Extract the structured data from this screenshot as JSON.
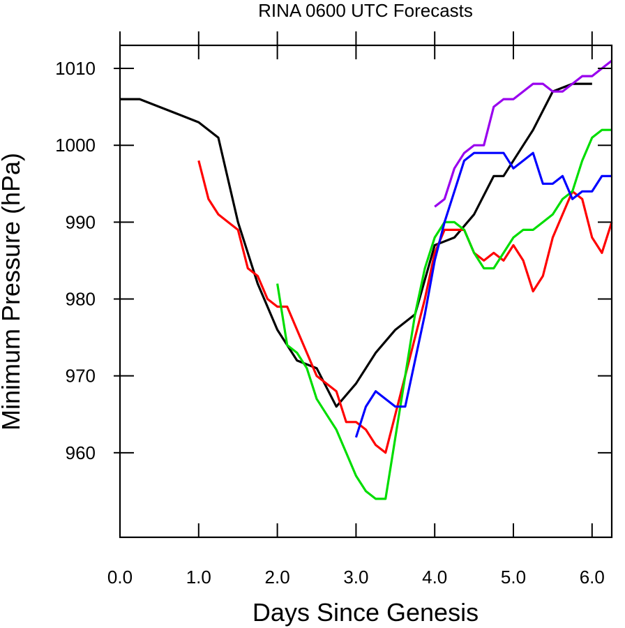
{
  "chart_data": {
    "type": "line",
    "title": "RINA 0600 UTC Forecasts",
    "xlabel": "Days Since Genesis",
    "ylabel": "Minimum Pressure (hPa)",
    "xlim": [
      0,
      6.25
    ],
    "ylim": [
      949,
      1013
    ],
    "x_ticks": [
      0,
      1,
      2,
      3,
      4,
      5,
      6
    ],
    "x_tick_labels": [
      "0.0",
      "1.0",
      "2.0",
      "3.0",
      "4.0",
      "5.0",
      "6.0"
    ],
    "y_ticks": [
      960,
      970,
      980,
      990,
      1000,
      1010
    ],
    "y_tick_labels": [
      "960",
      "970",
      "980",
      "990",
      "1000",
      "1010"
    ],
    "grid": false,
    "series": [
      {
        "color": "#000000",
        "x": [
          0,
          0.25,
          0.5,
          0.75,
          1.0,
          1.25,
          1.5,
          1.75,
          2.0,
          2.25,
          2.5,
          2.75,
          3.0,
          3.25,
          3.5,
          3.75,
          4.0,
          4.25,
          4.5,
          4.75,
          4.875,
          5.0,
          5.25,
          5.5,
          5.75,
          6.0
        ],
        "y": [
          1006,
          1006,
          1005,
          1004,
          1003,
          1001,
          990,
          982,
          976,
          972,
          971,
          966,
          969,
          973,
          976,
          978,
          987,
          988,
          991,
          996,
          996,
          998,
          1002,
          1007,
          1008,
          1008
        ]
      },
      {
        "color": "#ff0000",
        "x": [
          1.0,
          1.125,
          1.25,
          1.375,
          1.5,
          1.625,
          1.75,
          1.875,
          2.0,
          2.125,
          2.25,
          2.375,
          2.5,
          2.625,
          2.75,
          2.875,
          3.0,
          3.125,
          3.25,
          3.375,
          3.5,
          3.625,
          3.75,
          3.875,
          4.0,
          4.125,
          4.25,
          4.375,
          4.5,
          4.625,
          4.75,
          4.875,
          5.0,
          5.125,
          5.25,
          5.375,
          5.5,
          5.625,
          5.75,
          5.875,
          6.0,
          6.125,
          6.25
        ],
        "y": [
          998,
          993,
          991,
          990,
          989,
          984,
          983,
          980,
          979,
          979,
          976,
          973,
          970,
          969,
          968,
          964,
          964,
          963,
          961,
          960,
          965,
          970,
          975,
          980,
          986,
          989,
          989,
          989,
          986,
          985,
          986,
          985,
          987,
          985,
          981,
          983,
          988,
          991,
          994,
          993,
          988,
          986,
          990
        ]
      },
      {
        "color": "#00dd00",
        "x": [
          2.0,
          2.125,
          2.25,
          2.375,
          2.5,
          2.625,
          2.75,
          2.875,
          3.0,
          3.125,
          3.25,
          3.375,
          3.5,
          3.625,
          3.75,
          3.875,
          4.0,
          4.125,
          4.25,
          4.375,
          4.5,
          4.625,
          4.75,
          4.875,
          5.0,
          5.125,
          5.25,
          5.375,
          5.5,
          5.625,
          5.75,
          5.875,
          6.0,
          6.125,
          6.25
        ],
        "y": [
          982,
          974,
          973,
          971,
          967,
          965,
          963,
          960,
          957,
          955,
          954,
          954,
          962,
          970,
          978,
          984,
          988,
          990,
          990,
          989,
          986,
          984,
          984,
          986,
          988,
          989,
          989,
          990,
          991,
          993,
          994,
          998,
          1001,
          1002,
          1002
        ]
      },
      {
        "color": "#0000ff",
        "x": [
          3.0,
          3.125,
          3.25,
          3.375,
          3.5,
          3.625,
          3.75,
          3.875,
          4.0,
          4.125,
          4.25,
          4.375,
          4.5,
          4.625,
          4.75,
          4.875,
          5.0,
          5.125,
          5.25,
          5.375,
          5.5,
          5.625,
          5.75,
          5.875,
          6.0,
          6.125,
          6.25
        ],
        "y": [
          962,
          966,
          968,
          967,
          966,
          966,
          972,
          978,
          985,
          990,
          994,
          998,
          999,
          999,
          999,
          999,
          997,
          998,
          999,
          995,
          995,
          996,
          993,
          994,
          994,
          996,
          996
        ]
      },
      {
        "color": "#9900ee",
        "x": [
          4.0,
          4.125,
          4.25,
          4.375,
          4.5,
          4.625,
          4.75,
          4.875,
          5.0,
          5.125,
          5.25,
          5.375,
          5.5,
          5.625,
          5.75,
          5.875,
          6.0,
          6.125,
          6.25
        ],
        "y": [
          992,
          993,
          997,
          999,
          1000,
          1000,
          1005,
          1006,
          1006,
          1007,
          1008,
          1008,
          1007,
          1007,
          1008,
          1009,
          1009,
          1010,
          1011
        ]
      }
    ]
  }
}
